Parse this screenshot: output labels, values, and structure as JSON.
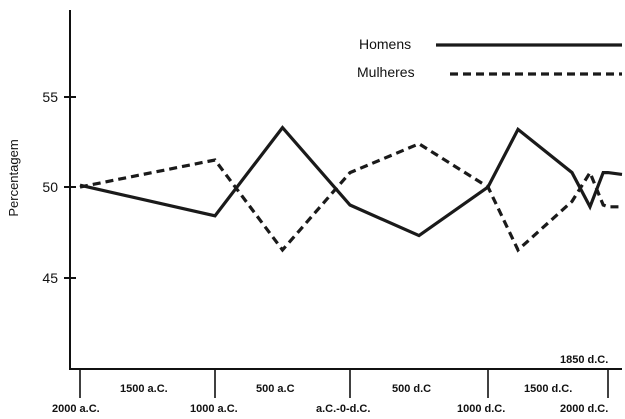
{
  "chart_data": {
    "type": "line",
    "ylabel": "Percentagem",
    "ylim": [
      40,
      60
    ],
    "yticks": [
      45,
      50,
      55
    ],
    "x_tick_labels_lower": [
      "2000 a.C.",
      "1000 a.C.",
      "a.C.-0-d.C.",
      "1000 d.C.",
      "2000 d.C."
    ],
    "x_tick_labels_upper": [
      "1500 a.C.",
      "500 a.C",
      "500 d.C",
      "1500 d.C."
    ],
    "x_extra_label": "1850 d.C.",
    "legend_position": "top-right",
    "series": [
      {
        "name": "Homens",
        "style": "solid",
        "color": "#1a1a1a",
        "points": [
          [
            -2000,
            50.1
          ],
          [
            -1000,
            48.4
          ],
          [
            -500,
            53.3
          ],
          [
            0,
            49.0
          ],
          [
            500,
            47.3
          ],
          [
            1000,
            50.0
          ],
          [
            1250,
            53.2
          ],
          [
            1700,
            50.8
          ],
          [
            1850,
            48.9
          ],
          [
            1960,
            50.8
          ],
          [
            2000,
            50.8
          ],
          [
            2200,
            50.7
          ]
        ]
      },
      {
        "name": "Mulheres",
        "style": "dashed",
        "color": "#1a1a1a",
        "points": [
          [
            -2000,
            50.0
          ],
          [
            -1000,
            51.5
          ],
          [
            -500,
            46.5
          ],
          [
            0,
            50.8
          ],
          [
            500,
            52.4
          ],
          [
            1000,
            50.0
          ],
          [
            1250,
            46.5
          ],
          [
            1700,
            49.2
          ],
          [
            1850,
            50.8
          ],
          [
            1960,
            49.0
          ],
          [
            2000,
            48.9
          ],
          [
            2200,
            48.9
          ]
        ]
      }
    ]
  }
}
